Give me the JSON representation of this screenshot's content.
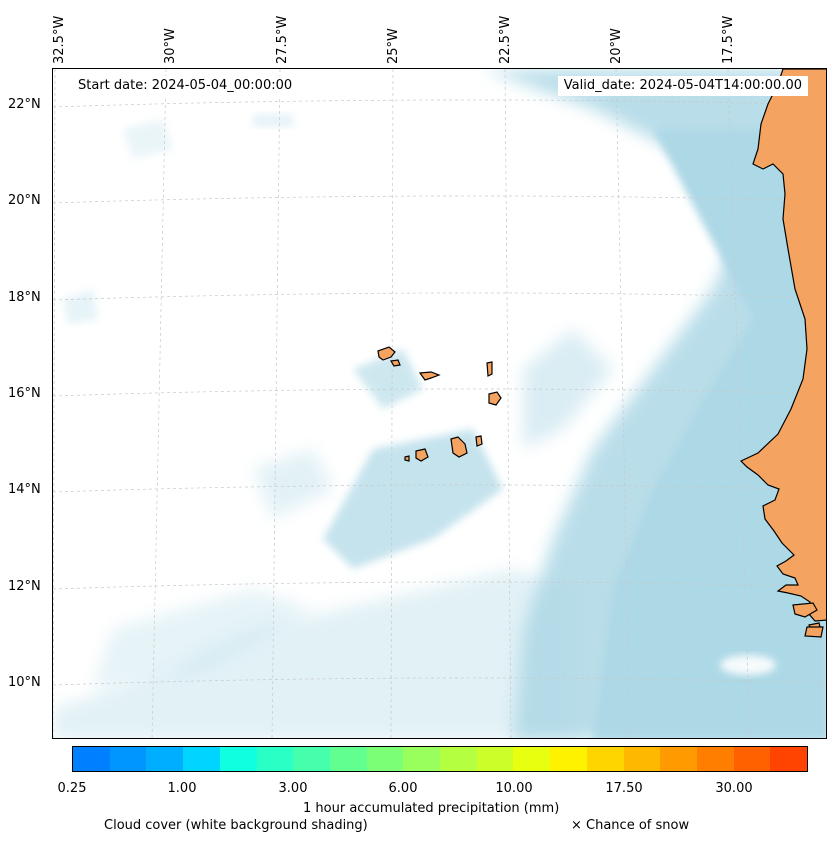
{
  "map": {
    "longitude_labels": [
      "32.5°W",
      "30°W",
      "27.5°W",
      "25°W",
      "22.5°W",
      "20°W",
      "17.5°W"
    ],
    "latitude_labels": [
      "22°N",
      "20°N",
      "18°N",
      "16°N",
      "14°N",
      "12°N",
      "10°N"
    ],
    "start_date": "Start date: 2024-05-04_00:00:00",
    "valid_date": "Valid_date: 2024-05-04T14:00:00.00",
    "colors": {
      "land": "#f4a460",
      "cloud": "#add8e6",
      "coastline": "#000000",
      "gridline": "#c8c8c8"
    }
  },
  "colorbar": {
    "colors": [
      "#0080ff",
      "#0096ff",
      "#00aeff",
      "#00d4ff",
      "#10ffe0",
      "#2affc6",
      "#45ffac",
      "#60ff90",
      "#7aff76",
      "#98ff5c",
      "#b4ff40",
      "#ccff2a",
      "#e8ff10",
      "#fff200",
      "#ffd500",
      "#ffb800",
      "#ff9b00",
      "#ff7e00",
      "#ff6000",
      "#ff4300"
    ],
    "tick_labels": [
      "0.25",
      "1.00",
      "3.00",
      "6.00",
      "10.00",
      "17.50",
      "30.00"
    ],
    "label": "1 hour accumulated precipitation (mm)"
  },
  "legend": {
    "cloud_cover": "Cloud cover (white background shading)",
    "snow": "× Chance of snow"
  }
}
